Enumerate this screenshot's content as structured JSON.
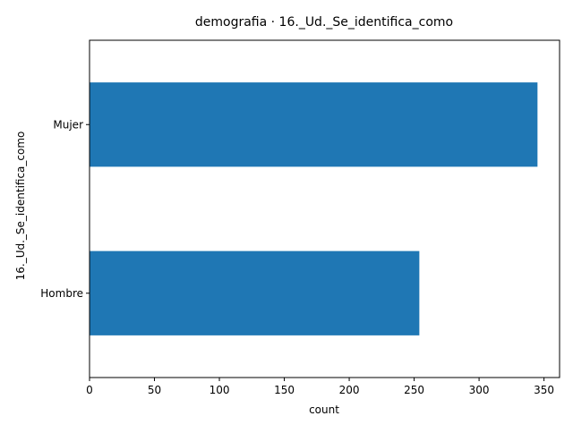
{
  "chart_data": {
    "type": "bar",
    "orientation": "horizontal",
    "title": "demografia · 16._Ud._Se_identifica_como",
    "xlabel": "count",
    "ylabel": "16._Ud._Se_identifica_como",
    "categories": [
      "Hombre",
      "Mujer"
    ],
    "values": [
      254,
      345
    ],
    "xlim": [
      0,
      362
    ],
    "xticks": [
      0,
      50,
      100,
      150,
      200,
      250,
      300,
      350
    ],
    "grid": false,
    "legend": "none",
    "bar_color": "#1f77b4"
  }
}
